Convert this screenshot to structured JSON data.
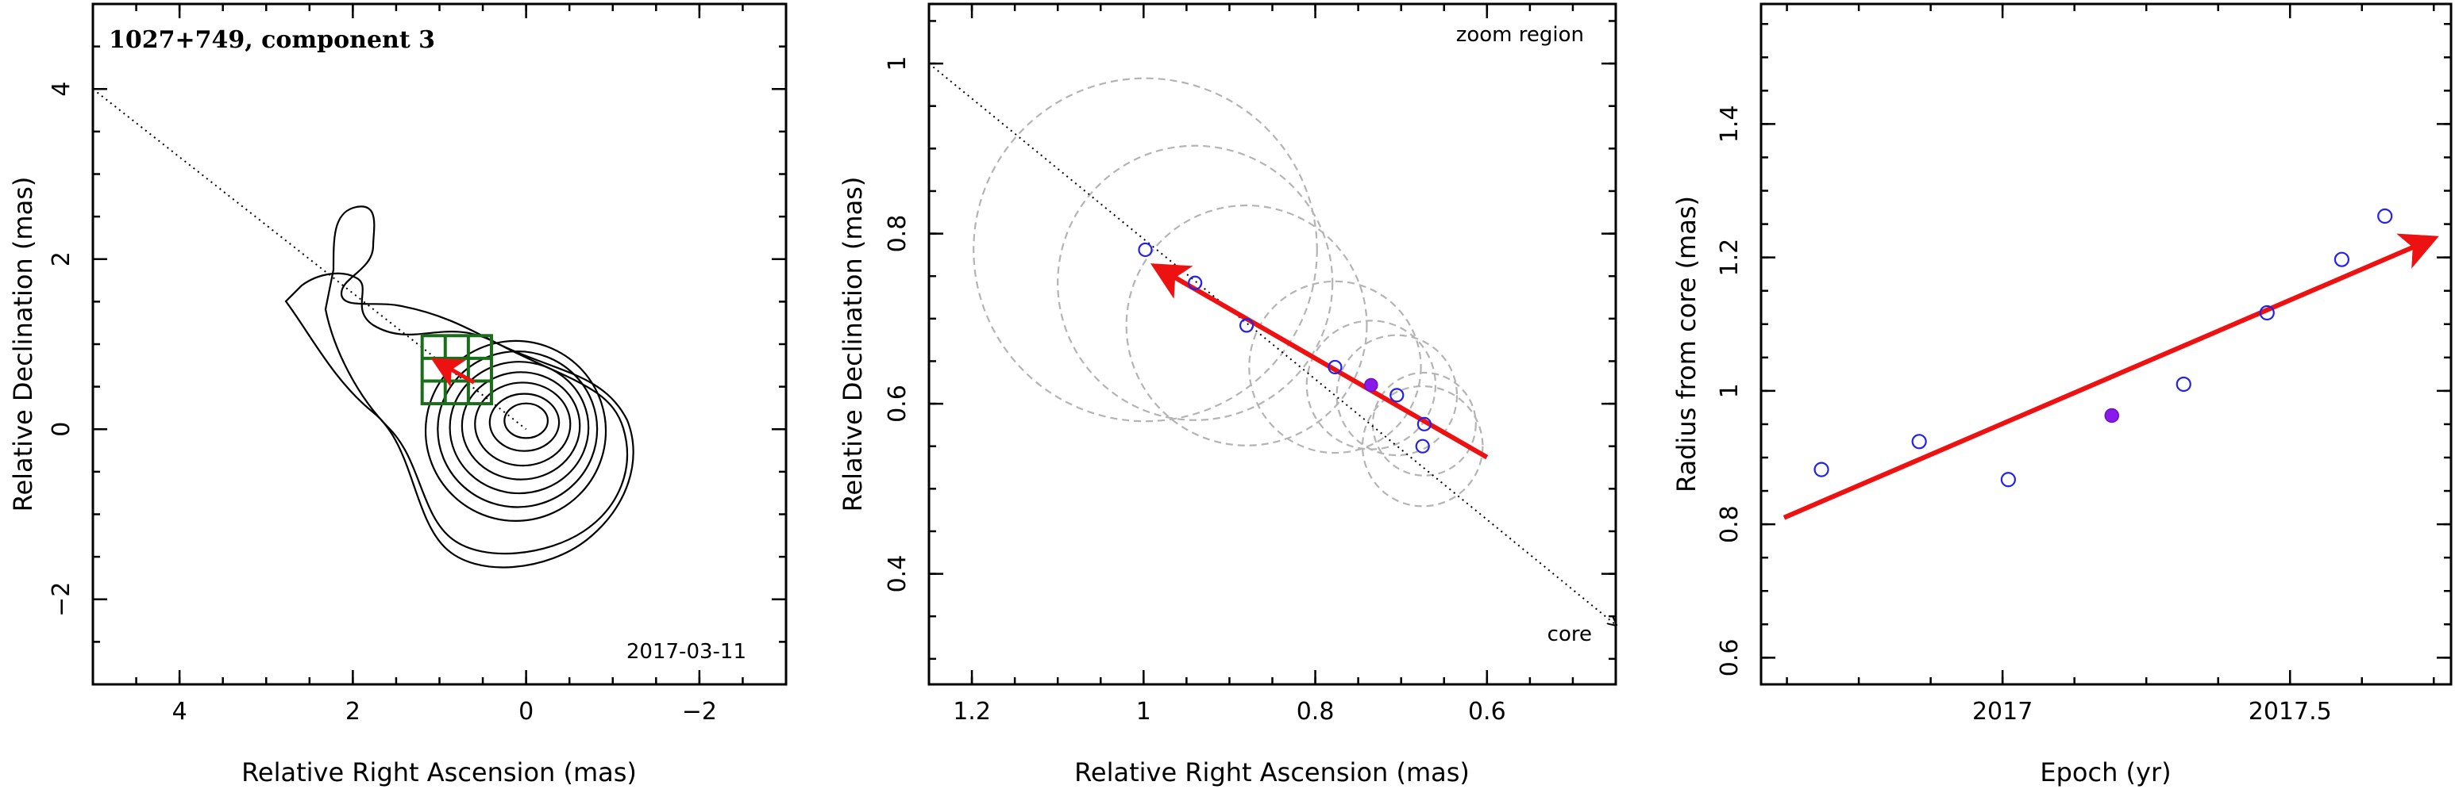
{
  "chart_data": [
    {
      "type": "scatter",
      "title": "1027+749, component 3",
      "xlabel": "Relative Right Ascension (mas)",
      "ylabel": "Relative Declination (mas)",
      "xlim": [
        5,
        -3
      ],
      "ylim": [
        -3,
        5
      ],
      "xticks": [
        "4",
        "2",
        "0",
        "−2"
      ],
      "yticks": [
        "−2",
        "0",
        "2",
        "4"
      ],
      "xtick_values": [
        4,
        2,
        0,
        -2
      ],
      "ytick_values": [
        -2,
        0,
        2,
        4
      ],
      "date_label": "2017-03-11",
      "core_position": [
        0,
        0
      ],
      "jet_direction_line": {
        "x": [
          5,
          0
        ],
        "y": [
          4.0,
          0.0
        ]
      },
      "zoom_box": {
        "x": [
          1.2,
          0.4
        ],
        "y": [
          0.3,
          1.1
        ]
      },
      "motion_vector": {
        "from": [
          0.6,
          0.55
        ],
        "to": [
          1.0,
          0.78
        ]
      },
      "contours": [
        {
          "cx": 0.0,
          "cy": 0.1,
          "rx": 0.25,
          "ry": 0.2
        },
        {
          "cx": 0.02,
          "cy": 0.08,
          "rx": 0.4,
          "ry": 0.33
        },
        {
          "cx": 0.04,
          "cy": 0.06,
          "rx": 0.55,
          "ry": 0.48
        },
        {
          "cx": 0.06,
          "cy": 0.04,
          "rx": 0.68,
          "ry": 0.62
        },
        {
          "cx": 0.08,
          "cy": 0.02,
          "rx": 0.8,
          "ry": 0.76
        },
        {
          "cx": 0.1,
          "cy": 0.0,
          "rx": 0.92,
          "ry": 0.9
        },
        {
          "cx": 0.12,
          "cy": -0.02,
          "rx": 1.04,
          "ry": 1.04
        }
      ]
    },
    {
      "type": "scatter",
      "title": "",
      "xlabel": "Relative Right Ascension (mas)",
      "ylabel": "Relative Declination (mas)",
      "xlim": [
        1.25,
        0.45
      ],
      "ylim": [
        0.27,
        1.07
      ],
      "xticks": [
        "1.2",
        "1",
        "0.8",
        "0.6"
      ],
      "yticks": [
        "0.4",
        "0.6",
        "0.8",
        "1"
      ],
      "xtick_values": [
        1.2,
        1.0,
        0.8,
        0.6
      ],
      "ytick_values": [
        0.4,
        0.6,
        0.8,
        1.0
      ],
      "note_top": "zoom region",
      "note_core": "core",
      "points_open": [
        {
          "x": 0.998,
          "y": 0.781,
          "r": 0.2
        },
        {
          "x": 0.94,
          "y": 0.742,
          "r": 0.16
        },
        {
          "x": 0.88,
          "y": 0.692,
          "r": 0.14
        },
        {
          "x": 0.777,
          "y": 0.643,
          "r": 0.1
        },
        {
          "x": 0.705,
          "y": 0.61,
          "r": 0.07
        },
        {
          "x": 0.673,
          "y": 0.576,
          "r": 0.06
        },
        {
          "x": 0.675,
          "y": 0.55,
          "r": 0.07
        }
      ],
      "points_filled": [
        {
          "x": 0.735,
          "y": 0.622,
          "r": 0.075
        }
      ],
      "jet_direction_line": {
        "x": [
          1.25,
          0.45
        ],
        "y": [
          1.0,
          0.34
        ]
      },
      "motion_vector": {
        "from": [
          0.6,
          0.537
        ],
        "to": [
          0.98,
          0.758
        ]
      }
    },
    {
      "type": "scatter",
      "title": "",
      "xlabel": "Epoch (yr)",
      "ylabel": "Radius from core (mas)",
      "xlim": [
        2016.58,
        2017.78
      ],
      "ylim": [
        0.56,
        1.58
      ],
      "xticks": [
        "2017",
        "2017.5"
      ],
      "yticks": [
        "0.6",
        "0.8",
        "1",
        "1.2",
        "1.4"
      ],
      "xtick_values": [
        2017.0,
        2017.5
      ],
      "ytick_values": [
        0.6,
        0.8,
        1.0,
        1.2,
        1.4
      ],
      "points_open": [
        {
          "x": 2016.685,
          "y": 0.882
        },
        {
          "x": 2016.855,
          "y": 0.924
        },
        {
          "x": 2017.01,
          "y": 0.867
        },
        {
          "x": 2017.315,
          "y": 1.01
        },
        {
          "x": 2017.46,
          "y": 1.117
        },
        {
          "x": 2017.59,
          "y": 1.197
        },
        {
          "x": 2017.665,
          "y": 1.262
        }
      ],
      "points_filled": [
        {
          "x": 2017.19,
          "y": 0.963
        }
      ],
      "fit_vector": {
        "from": [
          2016.62,
          0.81
        ],
        "to": [
          2017.74,
          1.225
        ]
      }
    }
  ]
}
